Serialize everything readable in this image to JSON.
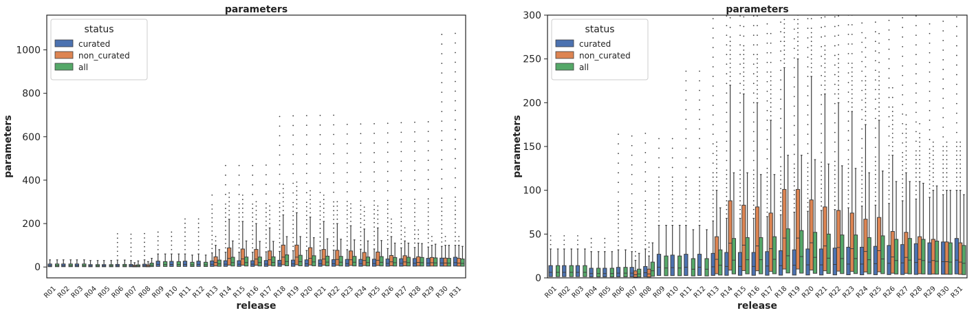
{
  "colors": {
    "curated": "#4c72b0",
    "non_curated": "#dd8452",
    "all": "#55a868",
    "line": "#3d3d3d"
  },
  "chart_data": [
    {
      "type": "box",
      "title": "parameters",
      "xlabel": "release",
      "ylabel": "parameters",
      "ylim": [
        -50,
        1160
      ],
      "yticks": [
        0,
        200,
        400,
        600,
        800,
        1000
      ],
      "grid": false,
      "legend": {
        "title": "status",
        "entries": [
          "curated",
          "non_curated",
          "all"
        ],
        "position": "top-left"
      },
      "categories": [
        "R01",
        "R02",
        "R03",
        "R04",
        "R05",
        "R06",
        "R07",
        "R08",
        "R09",
        "R10",
        "R11",
        "R12",
        "R13",
        "R14",
        "R15",
        "R16",
        "R17",
        "R18",
        "R19",
        "R20",
        "R21",
        "R22",
        "R23",
        "R24",
        "R25",
        "R26",
        "R27",
        "R28",
        "R29",
        "R30",
        "R31"
      ],
      "series": [
        {
          "name": "curated",
          "q3": [
            14,
            14,
            14,
            11,
            11,
            12,
            12,
            13,
            27,
            26,
            27,
            27,
            28,
            29,
            29,
            29,
            30,
            31,
            32,
            33,
            33,
            34,
            35,
            35,
            36,
            37,
            38,
            39,
            40,
            41,
            45
          ],
          "whisker": [
            33,
            33,
            33,
            30,
            30,
            32,
            30,
            33,
            60,
            60,
            60,
            60,
            65,
            68,
            68,
            68,
            70,
            72,
            75,
            76,
            77,
            78,
            80,
            82,
            83,
            85,
            88,
            90,
            92,
            95,
            100
          ],
          "outlier_max": [
            48,
            48,
            48,
            48,
            48,
            165,
            165,
            165,
            165,
            165,
            240,
            240,
            370,
            490,
            490,
            490,
            490,
            700,
            700,
            700,
            700,
            700,
            700,
            700,
            700,
            700,
            700,
            700,
            700,
            1110,
            1110
          ]
        },
        {
          "name": "non_curated",
          "q3": [
            0,
            0,
            0,
            0,
            0,
            0,
            8,
            10,
            0,
            0,
            0,
            0,
            47,
            88,
            83,
            81,
            74,
            101,
            101,
            89,
            81,
            77,
            74,
            67,
            69,
            53,
            52,
            47,
            44,
            41,
            40
          ],
          "whisker": [
            0,
            0,
            0,
            0,
            0,
            0,
            20,
            25,
            0,
            0,
            0,
            0,
            100,
            220,
            210,
            200,
            180,
            240,
            250,
            230,
            210,
            200,
            190,
            175,
            180,
            140,
            120,
            110,
            100,
            100,
            100
          ],
          "outlier_max": [
            0,
            0,
            0,
            0,
            0,
            0,
            0,
            0,
            0,
            0,
            0,
            0,
            0,
            0,
            0,
            0,
            0,
            0,
            0,
            0,
            0,
            0,
            0,
            0,
            0,
            0,
            0,
            0,
            0,
            0,
            0
          ]
        },
        {
          "name": "all",
          "q3": [
            14,
            14,
            14,
            11,
            11,
            12,
            10,
            18,
            25,
            25,
            22,
            22,
            32,
            45,
            46,
            46,
            47,
            56,
            54,
            52,
            50,
            49,
            49,
            46,
            48,
            44,
            45,
            44,
            42,
            40,
            37
          ],
          "whisker": [
            33,
            33,
            33,
            30,
            30,
            32,
            28,
            40,
            60,
            60,
            55,
            55,
            80,
            120,
            120,
            118,
            118,
            140,
            140,
            135,
            130,
            128,
            125,
            120,
            122,
            110,
            110,
            108,
            105,
            100,
            95
          ],
          "outlier_max": [
            0,
            0,
            0,
            0,
            0,
            0,
            0,
            0,
            0,
            0,
            0,
            0,
            0,
            0,
            0,
            0,
            0,
            0,
            0,
            0,
            0,
            0,
            0,
            0,
            0,
            0,
            0,
            0,
            0,
            0,
            0
          ]
        }
      ]
    },
    {
      "type": "box",
      "title": "parameters",
      "xlabel": "release",
      "ylabel": "parameters",
      "ylim": [
        0,
        300
      ],
      "yticks": [
        0,
        50,
        100,
        150,
        200,
        250,
        300
      ],
      "grid": false,
      "legend": {
        "title": "status",
        "entries": [
          "curated",
          "non_curated",
          "all"
        ],
        "position": "top-left"
      },
      "categories": [
        "R01",
        "R02",
        "R03",
        "R04",
        "R05",
        "R06",
        "R07",
        "R08",
        "R09",
        "R10",
        "R11",
        "R12",
        "R13",
        "R14",
        "R15",
        "R16",
        "R17",
        "R18",
        "R19",
        "R20",
        "R21",
        "R22",
        "R23",
        "R24",
        "R25",
        "R26",
        "R27",
        "R28",
        "R29",
        "R30",
        "R31"
      ],
      "series": [
        {
          "name": "curated",
          "q3": [
            14,
            14,
            14,
            11,
            11,
            12,
            12,
            13,
            27,
            26,
            27,
            27,
            28,
            29,
            29,
            29,
            30,
            31,
            32,
            33,
            33,
            34,
            35,
            35,
            36,
            37,
            38,
            39,
            40,
            41,
            45
          ],
          "whisker": [
            33,
            33,
            33,
            30,
            30,
            32,
            30,
            33,
            60,
            60,
            60,
            60,
            65,
            68,
            68,
            68,
            70,
            72,
            75,
            76,
            77,
            78,
            80,
            82,
            83,
            85,
            88,
            90,
            92,
            95,
            100
          ],
          "outlier_max": [
            48,
            48,
            48,
            48,
            48,
            165,
            165,
            165,
            165,
            165,
            240,
            240,
            370,
            490,
            490,
            490,
            490,
            700,
            700,
            700,
            700,
            700,
            700,
            700,
            700,
            700,
            700,
            700,
            700,
            1110,
            1110
          ]
        },
        {
          "name": "non_curated",
          "q3": [
            0,
            0,
            0,
            0,
            0,
            0,
            8,
            10,
            0,
            0,
            0,
            0,
            47,
            88,
            83,
            81,
            74,
            101,
            101,
            89,
            81,
            77,
            74,
            67,
            69,
            53,
            52,
            47,
            44,
            41,
            40
          ],
          "whisker": [
            0,
            0,
            0,
            0,
            0,
            0,
            20,
            25,
            0,
            0,
            0,
            0,
            100,
            220,
            210,
            200,
            180,
            240,
            250,
            230,
            210,
            200,
            190,
            175,
            180,
            140,
            120,
            110,
            100,
            100,
            100
          ],
          "outlier_max": [
            0,
            0,
            0,
            0,
            0,
            0,
            0,
            0,
            0,
            0,
            0,
            0,
            0,
            0,
            0,
            0,
            0,
            0,
            0,
            0,
            0,
            0,
            0,
            0,
            0,
            0,
            0,
            0,
            0,
            0,
            0
          ]
        },
        {
          "name": "all",
          "q3": [
            14,
            14,
            14,
            11,
            11,
            12,
            10,
            18,
            25,
            25,
            22,
            22,
            32,
            45,
            46,
            46,
            47,
            56,
            54,
            52,
            50,
            49,
            49,
            46,
            48,
            44,
            45,
            44,
            42,
            40,
            37
          ],
          "whisker": [
            33,
            33,
            33,
            30,
            30,
            32,
            28,
            40,
            60,
            60,
            55,
            55,
            80,
            120,
            120,
            118,
            118,
            140,
            140,
            135,
            130,
            128,
            125,
            120,
            122,
            110,
            110,
            108,
            105,
            100,
            95
          ],
          "outlier_max": [
            0,
            0,
            0,
            0,
            0,
            0,
            0,
            0,
            0,
            0,
            0,
            0,
            0,
            0,
            0,
            0,
            0,
            0,
            0,
            0,
            0,
            0,
            0,
            0,
            0,
            0,
            0,
            0,
            0,
            0,
            0
          ]
        }
      ]
    }
  ]
}
